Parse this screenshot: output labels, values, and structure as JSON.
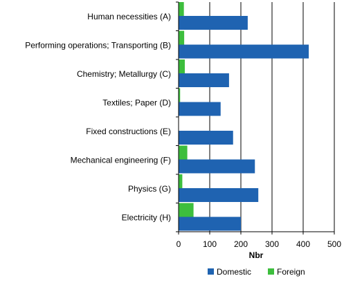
{
  "chart_data": {
    "type": "bar",
    "orientation": "horizontal",
    "categories": [
      "Human necessities (A)",
      "Performing operations; Transporting (B)",
      "Chemistry; Metallurgy  (C)",
      "Textiles; Paper (D)",
      "Fixed constructions (E)",
      "Mechanical engineering (F)",
      "Physics (G)",
      "Electricity (H)"
    ],
    "series": [
      {
        "name": "Domestic",
        "color": "#1f63b1",
        "values": [
          222,
          418,
          162,
          135,
          175,
          245,
          256,
          200
        ]
      },
      {
        "name": "Foreign",
        "color": "#3dbe3d",
        "values": [
          17,
          18,
          20,
          5,
          0,
          28,
          12,
          48
        ]
      }
    ],
    "xlabel": "Nbr",
    "xlim": [
      0,
      500
    ],
    "xticks": [
      0,
      100,
      200,
      300,
      400,
      500
    ],
    "grid": true,
    "legend_position": "bottom"
  }
}
